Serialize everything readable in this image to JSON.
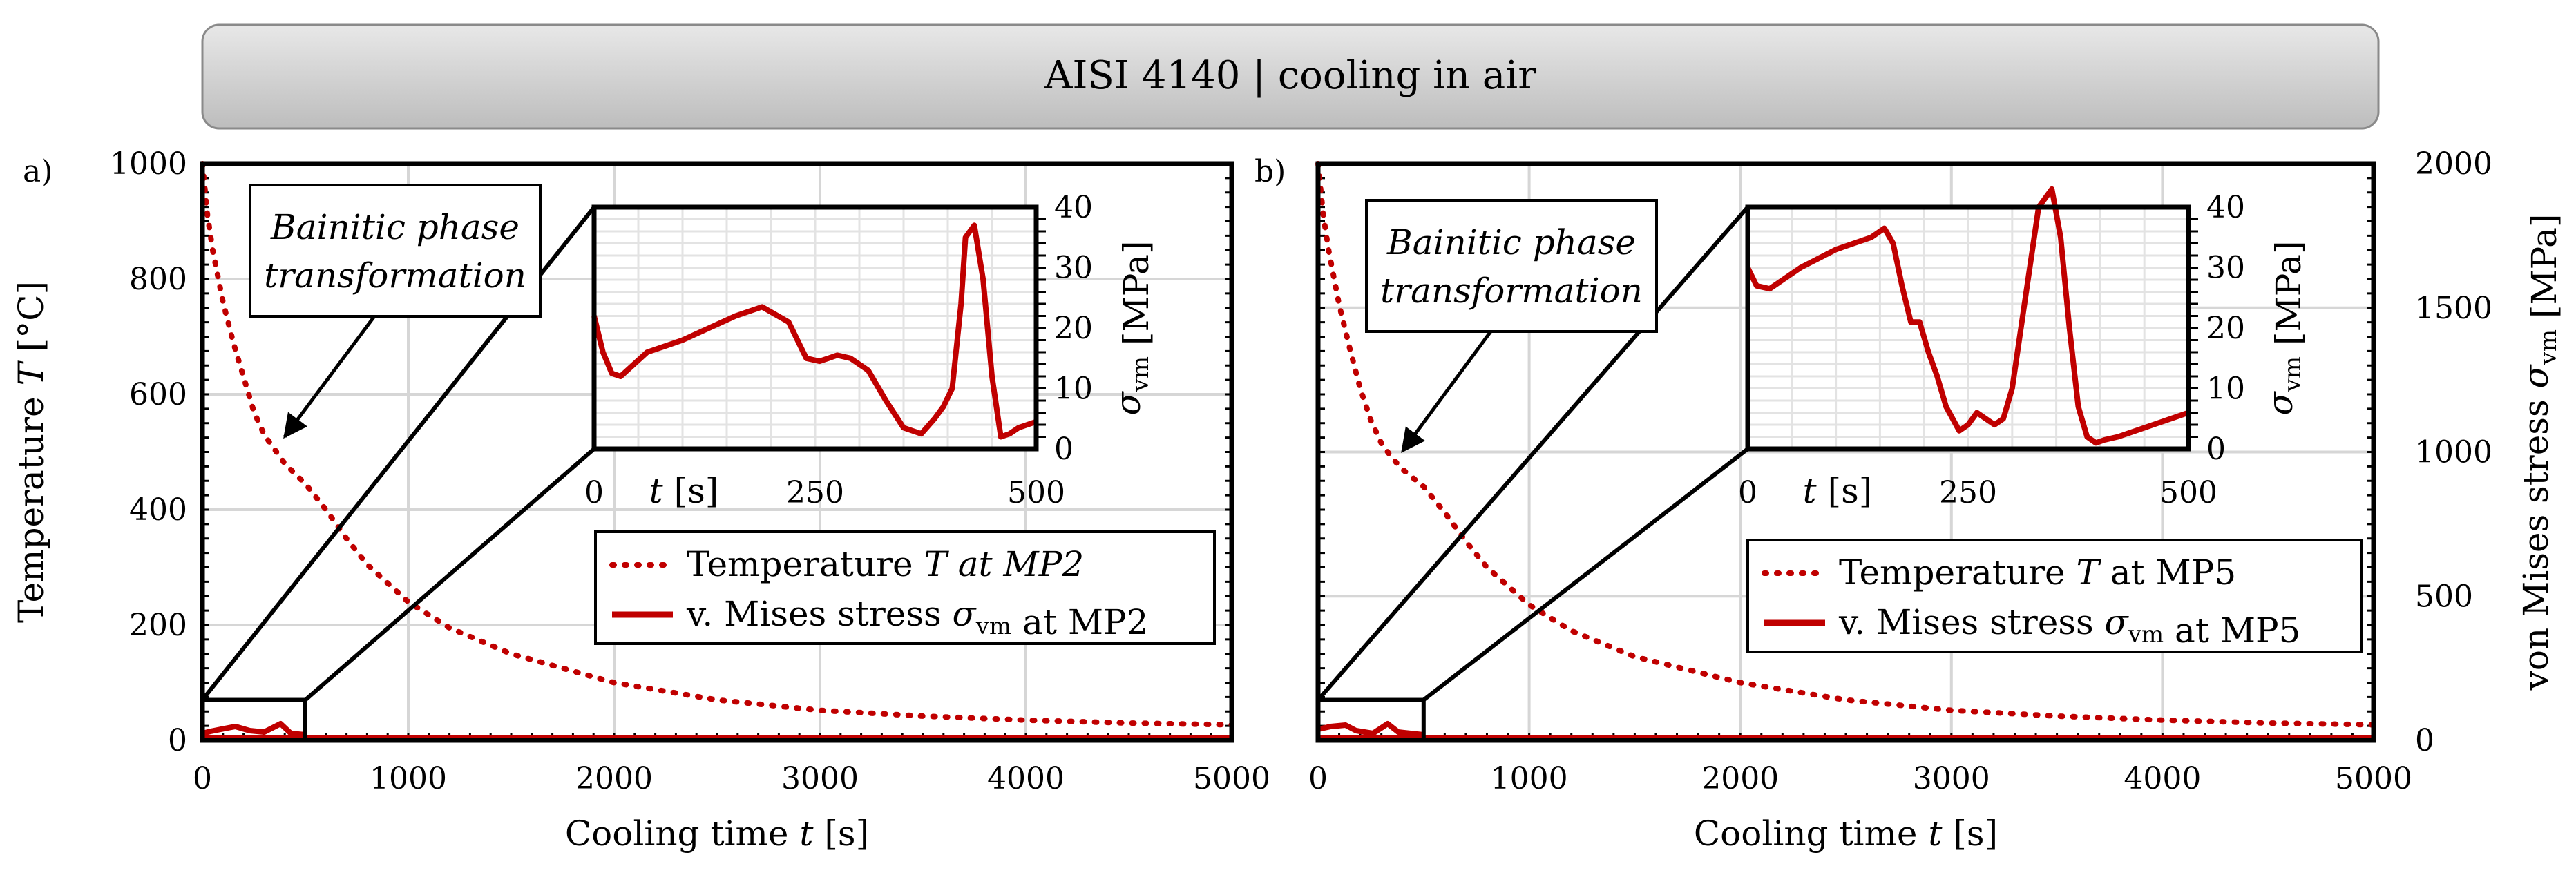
{
  "title": "AISI 4140 | cooling in air",
  "colors": {
    "series": "#c00000",
    "banner_top": "#e8e8e8",
    "banner_bottom": "#bdbdbd"
  },
  "chart_data": [
    {
      "panel_label": "a)",
      "type": "line",
      "xlabel": "Cooling time t [s]",
      "ylabel": "Temperature T [°C]",
      "xlim": [
        0,
        5000
      ],
      "ylim": [
        0,
        1000
      ],
      "x_ticks": [
        "0",
        "1000",
        "2000",
        "3000",
        "4000",
        "5000"
      ],
      "y_ticks": [
        "0",
        "200",
        "400",
        "600",
        "800",
        "1000"
      ],
      "annotation": [
        "Bainitic phase",
        "transformation"
      ],
      "annotation_target": {
        "t": 400,
        "T": 505
      },
      "zoom_box": {
        "x": [
          0,
          500
        ],
        "y": [
          0,
          70
        ]
      },
      "series": [
        {
          "name": "Temperature T at MP2",
          "style": "dotted",
          "t": [
            0,
            25,
            50,
            100,
            150,
            200,
            250,
            300,
            350,
            400,
            450,
            500,
            600,
            700,
            800,
            1000,
            1200,
            1500,
            2000,
            2500,
            3000,
            3500,
            4000,
            4500,
            5000
          ],
          "T": [
            1000,
            910,
            850,
            760,
            690,
            630,
            570,
            530,
            505,
            480,
            462,
            445,
            400,
            350,
            305,
            240,
            195,
            150,
            100,
            70,
            52,
            42,
            35,
            30,
            27
          ]
        },
        {
          "name": "v. Mises stress σvm at MP2",
          "style": "solid",
          "axis": "right",
          "t": [
            0,
            500,
            5000
          ],
          "sigma": [
            0,
            0,
            0
          ]
        }
      ],
      "legend": [
        "Temperature T at MP2",
        "v. Mises stress σvm at MP2"
      ],
      "inset": {
        "xlabel": "t [s]",
        "ylabel": "σvm [MPa]",
        "xlim": [
          0,
          500
        ],
        "ylim": [
          0,
          40
        ],
        "x_ticks": [
          "0",
          "250",
          "500"
        ],
        "y_ticks": [
          "0",
          "10",
          "20",
          "30",
          "40"
        ],
        "t": [
          0,
          10,
          20,
          30,
          45,
          60,
          80,
          100,
          130,
          160,
          190,
          220,
          240,
          255,
          265,
          275,
          290,
          310,
          330,
          350,
          370,
          385,
          395,
          405,
          415,
          420,
          430,
          440,
          450,
          460,
          470,
          480,
          490,
          500
        ],
        "sigma": [
          22,
          16,
          12.5,
          12,
          14,
          16,
          17,
          18,
          20,
          22,
          23.5,
          21,
          15,
          14.5,
          15,
          15.5,
          15,
          13,
          8,
          3.5,
          2.5,
          5,
          7,
          10,
          24,
          35,
          37,
          28,
          12,
          2,
          2.5,
          3.5,
          4,
          4.5
        ]
      }
    },
    {
      "panel_label": "b)",
      "type": "line",
      "xlabel": "Cooling time t [s]",
      "ylabel": "von Mises stress σvm [MPa]",
      "xlim": [
        0,
        5000
      ],
      "ylim": [
        0,
        2000
      ],
      "x_ticks": [
        "0",
        "1000",
        "2000",
        "3000",
        "4000",
        "5000"
      ],
      "y_ticks": [
        "0",
        "500",
        "1000",
        "1500",
        "2000"
      ],
      "annotation": [
        "Bainitic phase",
        "transformation"
      ],
      "annotation_target": {
        "t": 400,
        "T": 480
      },
      "zoom_box": {
        "x": [
          0,
          500
        ],
        "y": [
          0,
          70
        ]
      },
      "series": [
        {
          "name": "Temperature T at MP5",
          "style": "dotted",
          "axis": "left",
          "t": [
            0,
            25,
            50,
            100,
            150,
            200,
            250,
            300,
            350,
            400,
            450,
            500,
            600,
            700,
            800,
            1000,
            1200,
            1500,
            2000,
            2500,
            3000,
            3500,
            4000,
            4500,
            5000
          ],
          "T": [
            1000,
            910,
            850,
            755,
            680,
            610,
            555,
            515,
            490,
            470,
            455,
            440,
            395,
            345,
            300,
            235,
            190,
            145,
            100,
            70,
            52,
            42,
            35,
            30,
            27
          ]
        },
        {
          "name": "v. Mises stress σvm at MP5",
          "style": "solid",
          "t": [
            0,
            500,
            5000
          ],
          "sigma": [
            0,
            0,
            0
          ]
        }
      ],
      "legend": [
        "Temperature T at MP5",
        "v. Mises stress σvm at MP5"
      ],
      "inset": {
        "xlabel": "t [s]",
        "ylabel": "σvm [MPa]",
        "xlim": [
          0,
          500
        ],
        "ylim": [
          0,
          40
        ],
        "x_ticks": [
          "0",
          "250",
          "500"
        ],
        "y_ticks": [
          "0",
          "10",
          "20",
          "30",
          "40"
        ],
        "t": [
          0,
          10,
          25,
          40,
          60,
          80,
          100,
          120,
          140,
          155,
          165,
          175,
          185,
          195,
          205,
          215,
          225,
          240,
          250,
          260,
          270,
          280,
          290,
          300,
          315,
          330,
          345,
          355,
          365,
          375,
          385,
          395,
          405,
          420,
          440,
          460,
          480,
          500
        ],
        "sigma": [
          30,
          27,
          26.5,
          28,
          30,
          31.5,
          33,
          34,
          35,
          36.5,
          34,
          27,
          21,
          21,
          16,
          12,
          7,
          3,
          4,
          6,
          5,
          4,
          5,
          10,
          25,
          40,
          43,
          35,
          20,
          7,
          2,
          1,
          1.5,
          2,
          3,
          4,
          5,
          6
        ]
      }
    }
  ]
}
